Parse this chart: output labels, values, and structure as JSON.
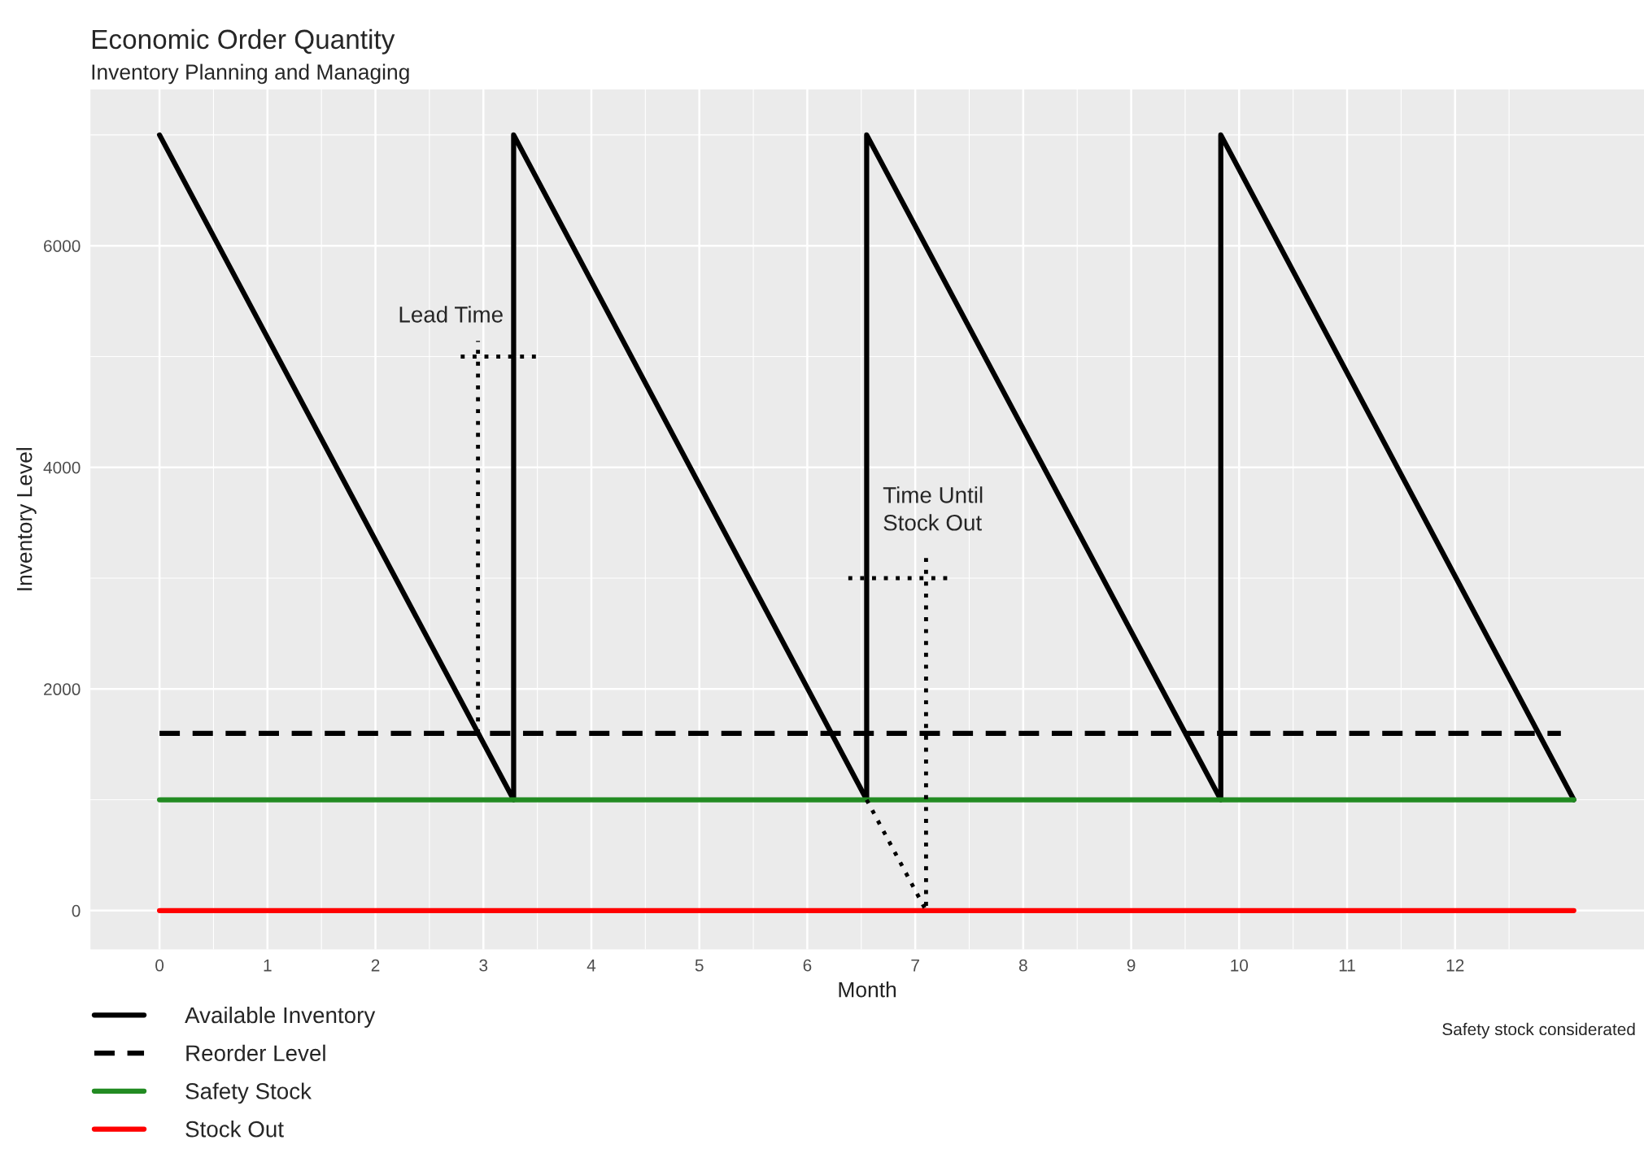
{
  "chart_data": {
    "type": "line",
    "title": "Economic Order Quantity",
    "subtitle": "Inventory Planning and Managing",
    "xlabel": "Month",
    "ylabel": "Inventory Level",
    "xlim": [
      -0.64,
      13.75
    ],
    "ylim": [
      -350,
      7410
    ],
    "xticks": [
      0,
      1,
      2,
      3,
      4,
      5,
      6,
      7,
      8,
      9,
      10,
      11,
      12
    ],
    "yticks": [
      0,
      2000,
      4000,
      6000
    ],
    "grid": true,
    "legend": "bottom left",
    "series": [
      {
        "name": "Available Inventory",
        "color": "#000000",
        "line_style": "solid",
        "x": [
          0,
          3.28,
          3.28,
          6.55,
          6.55,
          9.83,
          9.83,
          13.1
        ],
        "values": [
          7000,
          1000,
          7000,
          1000,
          7000,
          1000,
          7000,
          1000
        ]
      },
      {
        "name": "Reorder Level",
        "color": "#000000",
        "line_style": "dashed",
        "x": [
          0,
          12.98
        ],
        "values": [
          1600,
          1600
        ]
      },
      {
        "name": "Safety Stock",
        "color": "#228b22",
        "line_style": "solid",
        "x": [
          0,
          13.1
        ],
        "values": [
          1000,
          1000
        ]
      },
      {
        "name": "Stock Out",
        "color": "#ff0000",
        "line_style": "solid",
        "x": [
          0,
          13.1
        ],
        "values": [
          0,
          0
        ]
      },
      {
        "color": "#000000",
        "line_style": "dotted",
        "x": [
          2.95,
          2.95
        ],
        "values": [
          1600,
          5140
        ]
      },
      {
        "color": "#000000",
        "line_style": "dotted",
        "x": [
          2.79,
          3.49
        ],
        "values": [
          5000,
          5000
        ]
      },
      {
        "color": "#000000",
        "line_style": "dotted",
        "x": [
          6.55,
          7.1,
          7.1
        ],
        "values": [
          1000,
          0,
          3230
        ]
      },
      {
        "color": "#000000",
        "line_style": "dotted",
        "x": [
          6.38,
          7.31
        ],
        "values": [
          3000,
          3000
        ]
      }
    ],
    "annotations": [
      "Lead Time",
      "Time Until\nStock Out",
      "Safety stock considerated"
    ]
  }
}
